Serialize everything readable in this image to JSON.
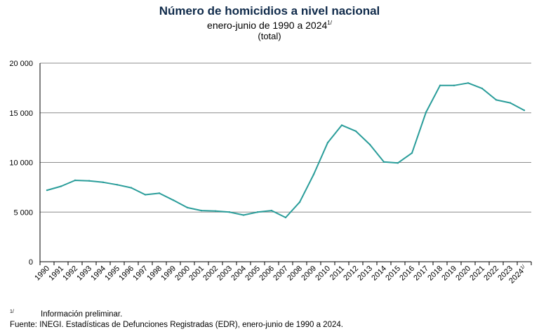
{
  "header": {
    "title": "Número de homicidios a nivel nacional",
    "subtitle": "enero-junio de 1990 a 2024",
    "subtitle_sup": "1/",
    "unit": "(total)"
  },
  "footer": {
    "note_mark": "1/",
    "note_text": "Información preliminar.",
    "source": "Fuente: INEGI. Estadísticas de Defunciones Registradas (EDR), enero-junio de 1990 a 2024."
  },
  "colors": {
    "line": "#2a9d9a",
    "grid": "#8c8c8c",
    "axis": "#000000"
  },
  "chart_data": {
    "type": "line",
    "title": "Número de homicidios a nivel nacional",
    "subtitle": "enero-junio de 1990 a 2024",
    "ylabel": "",
    "xlabel": "",
    "ylim": [
      0,
      20000
    ],
    "yticks": [
      0,
      5000,
      10000,
      15000,
      20000
    ],
    "ytick_labels": [
      "0",
      "5 000",
      "10 000",
      "15 000",
      "20 000"
    ],
    "grid": true,
    "legend": "none",
    "categories": [
      "1990",
      "1991",
      "1992",
      "1993",
      "1994",
      "1995",
      "1996",
      "1997",
      "1998",
      "1999",
      "2000",
      "2001",
      "2002",
      "2003",
      "2004",
      "2005",
      "2006",
      "2007",
      "2008",
      "2009",
      "2010",
      "2011",
      "2012",
      "2013",
      "2014",
      "2015",
      "2016",
      "2017",
      "2018",
      "2019",
      "2020",
      "2021",
      "2022",
      "2023",
      "2024 1/"
    ],
    "series": [
      {
        "values": [
          7200,
          7600,
          8200,
          8150,
          8000,
          7750,
          7450,
          6750,
          6900,
          6200,
          5450,
          5150,
          5100,
          5000,
          4700,
          5000,
          5150,
          4450,
          6000,
          8800,
          12000,
          13750,
          13150,
          11800,
          10050,
          9950,
          10950,
          15050,
          17750,
          17750,
          18000,
          17450,
          16300,
          16000,
          15250
        ]
      }
    ]
  }
}
